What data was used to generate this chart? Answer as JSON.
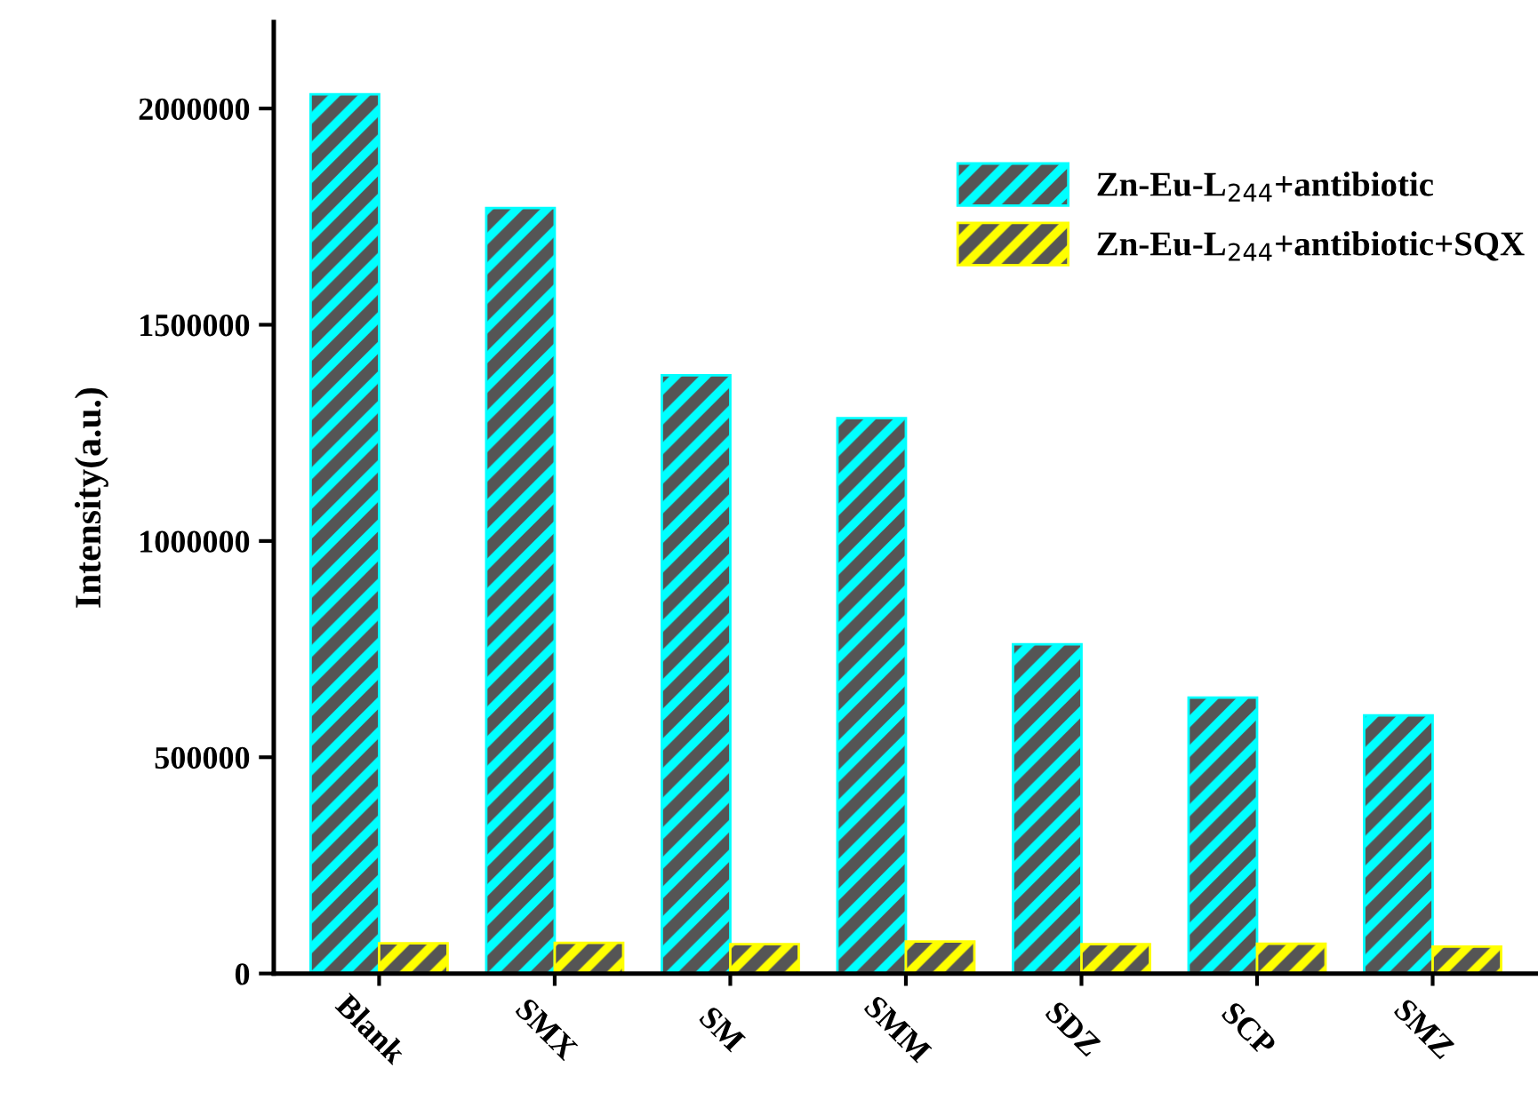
{
  "chart_data": {
    "type": "bar",
    "ylabel": "Intensity(a.u.)",
    "categories": [
      "Blank",
      "SMX",
      "SM",
      "SMM",
      "SDZ",
      "SCP",
      "SMZ"
    ],
    "series": [
      {
        "name": "Zn-Eu-L$_{244}$+antibiotic",
        "color": "#00ffff",
        "values": [
          2033000,
          1770000,
          1383000,
          1284000,
          761000,
          638000,
          597000
        ]
      },
      {
        "name": "Zn-Eu-L$_{244}$+antibiotic+SQX",
        "color": "#ffff00",
        "values": [
          70000,
          71000,
          68000,
          74000,
          68000,
          69000,
          62000
        ]
      }
    ],
    "ylim": [
      0,
      2200000
    ],
    "yticks": [
      0,
      500000,
      1000000,
      1500000,
      2000000
    ],
    "grid": false,
    "legend": "top right"
  }
}
